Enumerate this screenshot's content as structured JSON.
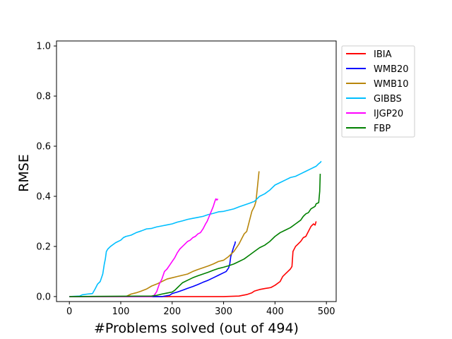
{
  "chart_data": {
    "type": "line",
    "title": "",
    "xlabel": "#Problems solved (out of 494)",
    "ylabel": "RMSE",
    "xlim": [
      -25,
      519
    ],
    "ylim": [
      -0.02,
      1.02
    ],
    "xticks": [
      0,
      100,
      200,
      300,
      400,
      500
    ],
    "yticks": [
      0.0,
      0.2,
      0.4,
      0.6,
      0.8,
      1.0
    ],
    "xtick_labels": [
      "0",
      "100",
      "200",
      "300",
      "400",
      "500"
    ],
    "ytick_labels": [
      "0.0",
      "0.2",
      "0.4",
      "0.6",
      "0.8",
      "1.0"
    ],
    "grid": false,
    "legend_position": "outside-right-top",
    "series": [
      {
        "name": "IBIA",
        "color": "#ff0000",
        "points": [
          [
            0,
            0
          ],
          [
            300,
            0
          ],
          [
            330,
            0.002
          ],
          [
            345,
            0.008
          ],
          [
            355,
            0.015
          ],
          [
            360,
            0.022
          ],
          [
            370,
            0.028
          ],
          [
            380,
            0.032
          ],
          [
            392,
            0.036
          ],
          [
            400,
            0.045
          ],
          [
            410,
            0.06
          ],
          [
            415,
            0.08
          ],
          [
            420,
            0.09
          ],
          [
            425,
            0.1
          ],
          [
            430,
            0.11
          ],
          [
            433,
            0.12
          ],
          [
            435,
            0.18
          ],
          [
            440,
            0.2
          ],
          [
            445,
            0.21
          ],
          [
            450,
            0.22
          ],
          [
            455,
            0.235
          ],
          [
            460,
            0.24
          ],
          [
            465,
            0.26
          ],
          [
            470,
            0.28
          ],
          [
            475,
            0.29
          ],
          [
            478,
            0.285
          ],
          [
            480,
            0.3
          ]
        ]
      },
      {
        "name": "WMB20",
        "color": "#0000ff",
        "points": [
          [
            0,
            0
          ],
          [
            180,
            0
          ],
          [
            195,
            0.005
          ],
          [
            200,
            0.012
          ],
          [
            210,
            0.018
          ],
          [
            220,
            0.025
          ],
          [
            230,
            0.033
          ],
          [
            240,
            0.04
          ],
          [
            250,
            0.048
          ],
          [
            260,
            0.057
          ],
          [
            270,
            0.065
          ],
          [
            280,
            0.075
          ],
          [
            290,
            0.085
          ],
          [
            300,
            0.095
          ],
          [
            305,
            0.1
          ],
          [
            310,
            0.115
          ],
          [
            312,
            0.13
          ],
          [
            314,
            0.16
          ],
          [
            317,
            0.18
          ],
          [
            320,
            0.2
          ],
          [
            322,
            0.21
          ],
          [
            323,
            0.22
          ]
        ]
      },
      {
        "name": "WMB10",
        "color": "#b8860b",
        "points": [
          [
            0,
            0
          ],
          [
            110,
            0
          ],
          [
            120,
            0.01
          ],
          [
            130,
            0.015
          ],
          [
            140,
            0.022
          ],
          [
            150,
            0.03
          ],
          [
            160,
            0.042
          ],
          [
            170,
            0.05
          ],
          [
            180,
            0.06
          ],
          [
            190,
            0.07
          ],
          [
            200,
            0.075
          ],
          [
            210,
            0.08
          ],
          [
            220,
            0.085
          ],
          [
            230,
            0.09
          ],
          [
            240,
            0.1
          ],
          [
            250,
            0.108
          ],
          [
            260,
            0.115
          ],
          [
            270,
            0.122
          ],
          [
            280,
            0.13
          ],
          [
            290,
            0.14
          ],
          [
            300,
            0.145
          ],
          [
            310,
            0.16
          ],
          [
            320,
            0.18
          ],
          [
            330,
            0.21
          ],
          [
            335,
            0.23
          ],
          [
            340,
            0.25
          ],
          [
            345,
            0.26
          ],
          [
            350,
            0.3
          ],
          [
            355,
            0.34
          ],
          [
            360,
            0.36
          ],
          [
            363,
            0.38
          ],
          [
            365,
            0.42
          ],
          [
            367,
            0.46
          ],
          [
            369,
            0.5
          ]
        ]
      },
      {
        "name": "GIBBS",
        "color": "#00bfff",
        "points": [
          [
            0,
            0
          ],
          [
            20,
            0.002
          ],
          [
            25,
            0.007
          ],
          [
            35,
            0.01
          ],
          [
            45,
            0.012
          ],
          [
            50,
            0.03
          ],
          [
            55,
            0.05
          ],
          [
            60,
            0.06
          ],
          [
            65,
            0.09
          ],
          [
            68,
            0.13
          ],
          [
            70,
            0.15
          ],
          [
            72,
            0.18
          ],
          [
            75,
            0.19
          ],
          [
            80,
            0.2
          ],
          [
            90,
            0.215
          ],
          [
            100,
            0.225
          ],
          [
            105,
            0.235
          ],
          [
            110,
            0.24
          ],
          [
            120,
            0.245
          ],
          [
            130,
            0.255
          ],
          [
            140,
            0.262
          ],
          [
            150,
            0.27
          ],
          [
            160,
            0.272
          ],
          [
            170,
            0.278
          ],
          [
            180,
            0.282
          ],
          [
            190,
            0.286
          ],
          [
            200,
            0.29
          ],
          [
            210,
            0.297
          ],
          [
            220,
            0.302
          ],
          [
            230,
            0.308
          ],
          [
            240,
            0.312
          ],
          [
            250,
            0.316
          ],
          [
            260,
            0.32
          ],
          [
            270,
            0.327
          ],
          [
            280,
            0.332
          ],
          [
            290,
            0.338
          ],
          [
            300,
            0.34
          ],
          [
            310,
            0.345
          ],
          [
            320,
            0.35
          ],
          [
            330,
            0.358
          ],
          [
            340,
            0.365
          ],
          [
            350,
            0.372
          ],
          [
            360,
            0.38
          ],
          [
            365,
            0.39
          ],
          [
            370,
            0.4
          ],
          [
            380,
            0.41
          ],
          [
            390,
            0.425
          ],
          [
            400,
            0.445
          ],
          [
            410,
            0.455
          ],
          [
            420,
            0.465
          ],
          [
            430,
            0.475
          ],
          [
            440,
            0.48
          ],
          [
            450,
            0.49
          ],
          [
            460,
            0.5
          ],
          [
            470,
            0.51
          ],
          [
            480,
            0.52
          ],
          [
            485,
            0.53
          ],
          [
            488,
            0.535
          ],
          [
            490,
            0.54
          ]
        ]
      },
      {
        "name": "IJGP20",
        "color": "#ff00ff",
        "points": [
          [
            0,
            0
          ],
          [
            160,
            0
          ],
          [
            165,
            0.005
          ],
          [
            170,
            0.02
          ],
          [
            175,
            0.05
          ],
          [
            180,
            0.07
          ],
          [
            185,
            0.1
          ],
          [
            190,
            0.11
          ],
          [
            195,
            0.125
          ],
          [
            200,
            0.14
          ],
          [
            205,
            0.155
          ],
          [
            210,
            0.175
          ],
          [
            215,
            0.19
          ],
          [
            220,
            0.2
          ],
          [
            225,
            0.21
          ],
          [
            230,
            0.22
          ],
          [
            235,
            0.225
          ],
          [
            240,
            0.235
          ],
          [
            245,
            0.24
          ],
          [
            250,
            0.25
          ],
          [
            255,
            0.255
          ],
          [
            260,
            0.27
          ],
          [
            265,
            0.29
          ],
          [
            268,
            0.3
          ],
          [
            272,
            0.32
          ],
          [
            276,
            0.34
          ],
          [
            280,
            0.36
          ],
          [
            283,
            0.38
          ],
          [
            285,
            0.39
          ],
          [
            287,
            0.385
          ],
          [
            289,
            0.39
          ]
        ]
      },
      {
        "name": "FBP",
        "color": "#008000",
        "points": [
          [
            0,
            0
          ],
          [
            160,
            0.002
          ],
          [
            170,
            0.005
          ],
          [
            180,
            0.01
          ],
          [
            190,
            0.014
          ],
          [
            200,
            0.018
          ],
          [
            205,
            0.025
          ],
          [
            210,
            0.035
          ],
          [
            215,
            0.045
          ],
          [
            220,
            0.055
          ],
          [
            230,
            0.065
          ],
          [
            240,
            0.075
          ],
          [
            250,
            0.083
          ],
          [
            260,
            0.09
          ],
          [
            270,
            0.097
          ],
          [
            280,
            0.105
          ],
          [
            290,
            0.112
          ],
          [
            300,
            0.117
          ],
          [
            310,
            0.123
          ],
          [
            320,
            0.13
          ],
          [
            330,
            0.14
          ],
          [
            340,
            0.15
          ],
          [
            350,
            0.165
          ],
          [
            360,
            0.18
          ],
          [
            370,
            0.195
          ],
          [
            380,
            0.205
          ],
          [
            390,
            0.22
          ],
          [
            400,
            0.24
          ],
          [
            410,
            0.255
          ],
          [
            420,
            0.265
          ],
          [
            430,
            0.275
          ],
          [
            440,
            0.29
          ],
          [
            450,
            0.305
          ],
          [
            455,
            0.32
          ],
          [
            460,
            0.33
          ],
          [
            465,
            0.335
          ],
          [
            470,
            0.35
          ],
          [
            478,
            0.36
          ],
          [
            480,
            0.37
          ],
          [
            485,
            0.375
          ],
          [
            487,
            0.42
          ],
          [
            488,
            0.49
          ]
        ]
      }
    ]
  }
}
